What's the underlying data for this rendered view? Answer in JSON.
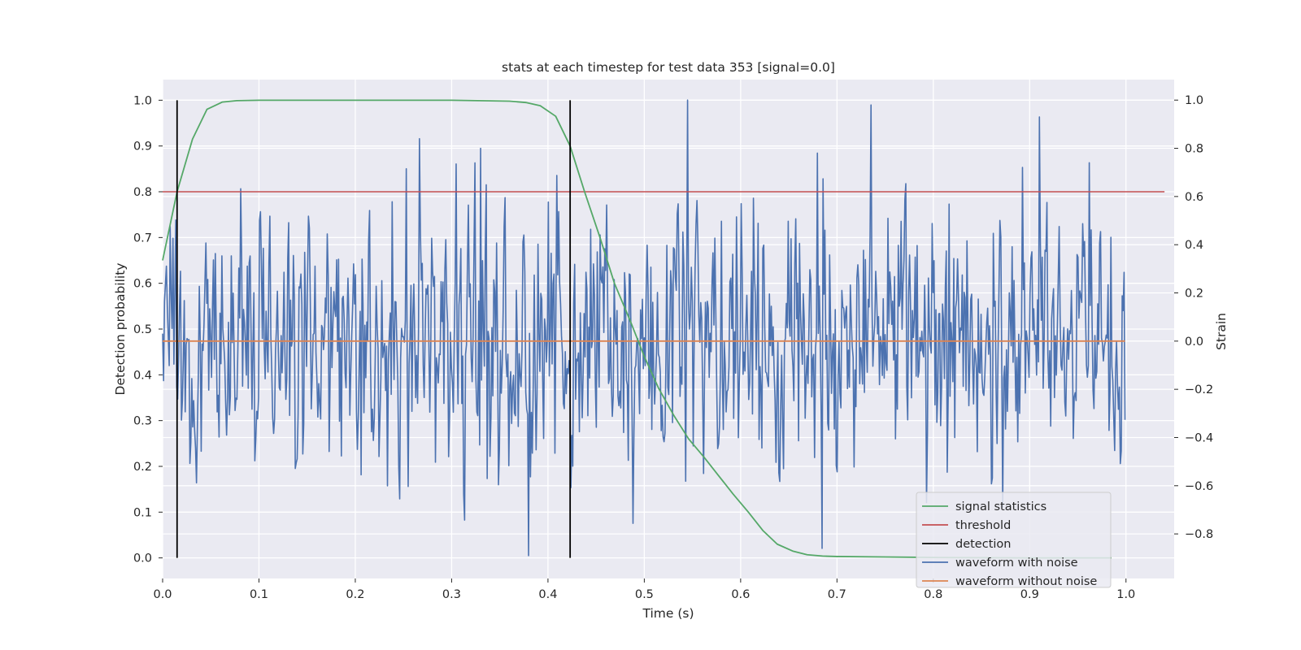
{
  "chart_data": {
    "type": "line",
    "title": "stats at each timestep for test data 353 [signal=0.0]",
    "xlabel": "Time (s)",
    "ylabel": "Detection probability",
    "y2label": "Strain",
    "xlim": [
      0.0,
      1.05
    ],
    "ylim": [
      -0.045,
      1.045
    ],
    "y2lim": [
      -0.985,
      1.085
    ],
    "xticks": [
      "0.0",
      "0.1",
      "0.2",
      "0.3",
      "0.4",
      "0.5",
      "0.6",
      "0.7",
      "0.8",
      "0.9",
      "1.0"
    ],
    "yticks": [
      "0.0",
      "0.1",
      "0.2",
      "0.3",
      "0.4",
      "0.5",
      "0.6",
      "0.7",
      "0.8",
      "0.9",
      "1.0"
    ],
    "y2ticks": [
      "−0.8",
      "−0.6",
      "−0.4",
      "−0.2",
      "0.0",
      "0.2",
      "0.4",
      "0.6",
      "0.8",
      "1.0"
    ],
    "grid": true,
    "legend_position": "lower-right",
    "colors": {
      "background": "#eaeaf2",
      "grid": "#ffffff",
      "signal_statistics": "#55a868",
      "threshold": "#c44e52",
      "detection": "#000000",
      "waveform_with_noise": "#4c72b0",
      "waveform_without_noise": "#dd8452"
    },
    "series": [
      {
        "name": "signal statistics",
        "axis": "left",
        "x": [
          0.0,
          0.015,
          0.031,
          0.046,
          0.062,
          0.077,
          0.1,
          0.2,
          0.3,
          0.36,
          0.377,
          0.392,
          0.408,
          0.423,
          0.438,
          0.454,
          0.469,
          0.485,
          0.5,
          0.515,
          0.531,
          0.546,
          0.562,
          0.577,
          0.592,
          0.608,
          0.623,
          0.638,
          0.654,
          0.669,
          0.685,
          0.7,
          0.75,
          0.8,
          0.9,
          0.985
        ],
        "y": [
          0.65,
          0.8,
          0.915,
          0.98,
          0.996,
          0.999,
          1.0,
          1.0,
          1.0,
          0.998,
          0.995,
          0.988,
          0.965,
          0.9,
          0.8,
          0.7,
          0.6,
          0.52,
          0.44,
          0.37,
          0.31,
          0.26,
          0.22,
          0.18,
          0.14,
          0.1,
          0.06,
          0.03,
          0.015,
          0.007,
          0.004,
          0.003,
          0.002,
          0.001,
          0.0,
          0.0
        ]
      },
      {
        "name": "threshold",
        "axis": "left",
        "x": [
          0.0,
          1.04
        ],
        "y": [
          0.8,
          0.8
        ]
      },
      {
        "name": "detection",
        "axis": "left",
        "segments": [
          {
            "x": 0.015,
            "y": [
              0.0,
              1.0
            ]
          },
          {
            "x": 0.423,
            "y": [
              0.0,
              1.0
            ]
          }
        ]
      },
      {
        "name": "waveform with noise",
        "axis": "right",
        "x_range": [
          0.0,
          0.999
        ],
        "n_points": 1024,
        "y_min": -0.9,
        "y_max": 1.0,
        "notable_peaks": [
          {
            "x": 0.545,
            "y": 1.0
          },
          {
            "x": 0.735,
            "y": 0.98
          },
          {
            "x": 0.91,
            "y": 0.93
          },
          {
            "x": 0.33,
            "y": 0.8
          },
          {
            "x": 0.68,
            "y": 0.78
          },
          {
            "x": 0.38,
            "y": -0.89
          },
          {
            "x": 0.685,
            "y": -0.86
          }
        ]
      },
      {
        "name": "waveform without noise",
        "axis": "right",
        "x": [
          0.0,
          0.999
        ],
        "y": [
          0.0,
          0.0
        ]
      }
    ]
  },
  "legend": [
    {
      "label": "signal statistics",
      "color": "#55a868"
    },
    {
      "label": "threshold",
      "color": "#c44e52"
    },
    {
      "label": "detection",
      "color": "#000000"
    },
    {
      "label": "waveform with noise",
      "color": "#4c72b0"
    },
    {
      "label": "waveform without noise",
      "color": "#dd8452"
    }
  ]
}
